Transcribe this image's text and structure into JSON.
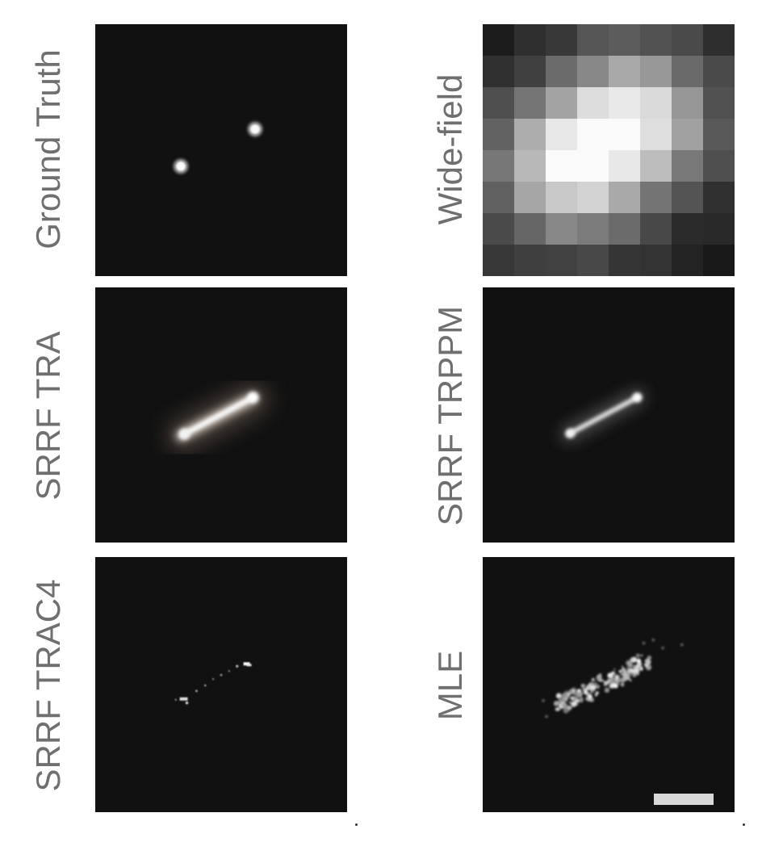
{
  "panels": [
    {
      "id": "ground-truth",
      "label": "Ground Truth"
    },
    {
      "id": "wide-field",
      "label": "Wide-field"
    },
    {
      "id": "srrf-tra",
      "label": "SRRF TRA"
    },
    {
      "id": "srrf-trppm",
      "label": "SRRF TRPPM"
    },
    {
      "id": "srrf-trac4",
      "label": "SRRF TRAC4"
    },
    {
      "id": "mle",
      "label": "MLE"
    }
  ],
  "scale_bar_present": true,
  "colors": {
    "panel_background": "#111111",
    "label_text": "#6f6f6f",
    "page_background": "#ffffff",
    "scale_bar": "#d8d8d8"
  }
}
